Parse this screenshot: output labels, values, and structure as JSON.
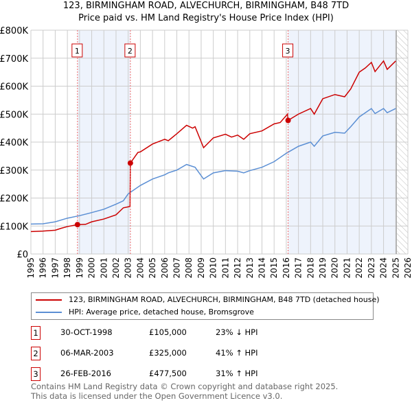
{
  "title": "123, BIRMINGHAM ROAD, ALVECHURCH, BIRMINGHAM, B48 7TD",
  "subtitle": "Price paid vs. HM Land Registry's House Price Index (HPI)",
  "colors": {
    "property": "#cc0000",
    "hpi": "#5b8fd4",
    "shade": "#eef3fc"
  },
  "chart_data": {
    "type": "line",
    "xlim": [
      1995,
      2026
    ],
    "ylim": [
      0,
      800000
    ],
    "yticks": [
      0,
      100000,
      200000,
      300000,
      400000,
      500000,
      600000,
      700000,
      800000
    ],
    "ytick_labels": [
      "£0",
      "£100K",
      "£200K",
      "£300K",
      "£400K",
      "£500K",
      "£600K",
      "£700K",
      "£800K"
    ],
    "xtick_labels": [
      "1995",
      "1996",
      "1997",
      "1998",
      "1999",
      "2000",
      "2001",
      "2002",
      "2003",
      "2004",
      "2005",
      "2006",
      "2007",
      "2008",
      "2009",
      "2010",
      "2011",
      "2012",
      "2013",
      "2014",
      "2015",
      "2016",
      "2017",
      "2018",
      "2019",
      "2020",
      "2021",
      "2022",
      "2023",
      "2024",
      "2025",
      "2026"
    ],
    "grid": true,
    "shaded_ranges": [
      [
        1998.83,
        2003.18
      ],
      [
        2016.15,
        2025.0
      ]
    ],
    "hatched_range": [
      2025.1,
      2026
    ],
    "series": [
      {
        "name": "123, BIRMINGHAM ROAD, ALVECHURCH, BIRMINGHAM, B48 7TD (detached house)",
        "color": "#cc0000",
        "x": [
          1995,
          1996,
          1997,
          1997.5,
          1998,
          1998.83,
          1999.5,
          2000,
          2001,
          2002,
          2002.6,
          2003.15,
          2003.18,
          2003.8,
          2004,
          2005,
          2006,
          2006.3,
          2007,
          2007.8,
          2008.3,
          2008.5,
          2009.2,
          2010,
          2011,
          2011.5,
          2012,
          2012.5,
          2013,
          2014,
          2015,
          2015.5,
          2016.1,
          2016.15,
          2017,
          2018,
          2018.3,
          2019,
          2020,
          2020.8,
          2021.3,
          2022,
          2022.5,
          2023,
          2023.3,
          2024,
          2024.3,
          2025
        ],
        "y": [
          80000,
          82000,
          85000,
          92000,
          98000,
          105000,
          106000,
          115000,
          125000,
          140000,
          165000,
          170000,
          325000,
          363000,
          365000,
          393000,
          410000,
          405000,
          430000,
          460000,
          450000,
          455000,
          380000,
          415000,
          428000,
          418000,
          425000,
          410000,
          430000,
          440000,
          465000,
          470000,
          500000,
          477500,
          500000,
          520000,
          500000,
          555000,
          570000,
          562000,
          590000,
          650000,
          665000,
          685000,
          652000,
          690000,
          660000,
          690000
        ]
      },
      {
        "name": "HPI: Average price, detached house, Bromsgrove",
        "color": "#5b8fd4",
        "x": [
          1995,
          1996,
          1997,
          1998,
          1999,
          2000,
          2001,
          2002,
          2002.6,
          2003,
          2004,
          2005,
          2006,
          2006.3,
          2007,
          2007.8,
          2008.5,
          2009.2,
          2010,
          2011,
          2012,
          2012.5,
          2013,
          2014,
          2015,
          2016,
          2017,
          2018,
          2018.3,
          2019,
          2020,
          2020.8,
          2021.3,
          2022,
          2022.5,
          2023,
          2023.3,
          2024,
          2024.3,
          2025
        ],
        "y": [
          107000,
          108000,
          115000,
          128000,
          137000,
          148000,
          160000,
          178000,
          190000,
          215000,
          245000,
          268000,
          283000,
          290000,
          300000,
          320000,
          310000,
          268000,
          290000,
          298000,
          296000,
          290000,
          298000,
          310000,
          330000,
          360000,
          385000,
          400000,
          385000,
          422000,
          435000,
          432000,
          455000,
          490000,
          505000,
          520000,
          502000,
          520000,
          505000,
          520000
        ]
      }
    ],
    "markers": [
      {
        "label": "1",
        "x": 1998.83,
        "y": 105000
      },
      {
        "label": "2",
        "x": 2003.18,
        "y": 325000
      },
      {
        "label": "3",
        "x": 2016.15,
        "y": 477500
      }
    ]
  },
  "transactions": [
    {
      "num": "1",
      "date": "30-OCT-1998",
      "price": "£105,000",
      "hpi": "23% ↓ HPI"
    },
    {
      "num": "2",
      "date": "06-MAR-2003",
      "price": "£325,000",
      "hpi": "41% ↑ HPI"
    },
    {
      "num": "3",
      "date": "26-FEB-2016",
      "price": "£477,500",
      "hpi": "31% ↑ HPI"
    }
  ],
  "footer": {
    "line1": "Contains HM Land Registry data © Crown copyright and database right 2025.",
    "line2": "This data is licensed under the Open Government Licence v3.0."
  }
}
